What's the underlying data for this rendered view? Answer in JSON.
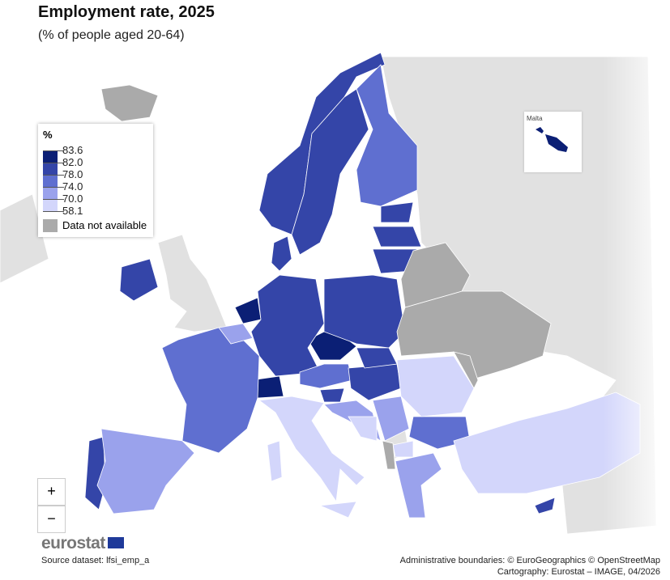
{
  "title": "Employment rate, 2025",
  "subtitle": "(% of people aged 20-64)",
  "legend": {
    "unit": "%",
    "breaks": [
      "83.6",
      "82.0",
      "78.0",
      "74.0",
      "70.0",
      "58.1"
    ],
    "colors": [
      "#0b1f75",
      "#3445a8",
      "#5f6fd0",
      "#9aa2ec",
      "#d3d6fb"
    ],
    "na_label": "Data not available",
    "na_color": "#aaaaaa",
    "non_eu_color": "#e1e1e1"
  },
  "regions": [
    {
      "id": "NL",
      "class": 0
    },
    {
      "id": "CZ",
      "class": 0
    },
    {
      "id": "CH",
      "class": 0
    },
    {
      "id": "MT",
      "class": 0
    },
    {
      "id": "NO",
      "class": 1
    },
    {
      "id": "SE",
      "class": 1
    },
    {
      "id": "DK",
      "class": 1
    },
    {
      "id": "DE",
      "class": 1
    },
    {
      "id": "PL",
      "class": 1
    },
    {
      "id": "EE",
      "class": 1
    },
    {
      "id": "LV",
      "class": 1
    },
    {
      "id": "LT",
      "class": 1
    },
    {
      "id": "IE",
      "class": 1
    },
    {
      "id": "AT",
      "class": 2
    },
    {
      "id": "HU",
      "class": 1
    },
    {
      "id": "SI",
      "class": 1
    },
    {
      "id": "PT",
      "class": 1
    },
    {
      "id": "CY",
      "class": 1
    },
    {
      "id": "SK",
      "class": 1
    },
    {
      "id": "FI",
      "class": 2
    },
    {
      "id": "FR",
      "class": 2
    },
    {
      "id": "BG",
      "class": 2
    },
    {
      "id": "HR",
      "class": 3
    },
    {
      "id": "RS",
      "class": 3
    },
    {
      "id": "ES",
      "class": 3
    },
    {
      "id": "BE",
      "class": 3
    },
    {
      "id": "GR",
      "class": 3
    },
    {
      "id": "IT",
      "class": 4
    },
    {
      "id": "RO",
      "class": 4
    },
    {
      "id": "TR",
      "class": 4
    },
    {
      "id": "MK",
      "class": 4
    },
    {
      "id": "BA",
      "class": 4
    },
    {
      "id": "UA",
      "class": "na"
    },
    {
      "id": "BY",
      "class": "na"
    },
    {
      "id": "IS",
      "class": "na"
    },
    {
      "id": "AL",
      "class": "na"
    },
    {
      "id": "MD",
      "class": "na"
    }
  ],
  "inset": {
    "label": "Malta"
  },
  "controls": {
    "zoom_in": "+",
    "zoom_out": "−"
  },
  "footer": {
    "logo": "eurostat",
    "source": "Source dataset: lfsi_emp_a",
    "boundaries": "Administrative boundaries: © EuroGeographics © OpenStreetMap",
    "cartography": "Cartography: Eurostat – IMAGE, 04/2026"
  }
}
